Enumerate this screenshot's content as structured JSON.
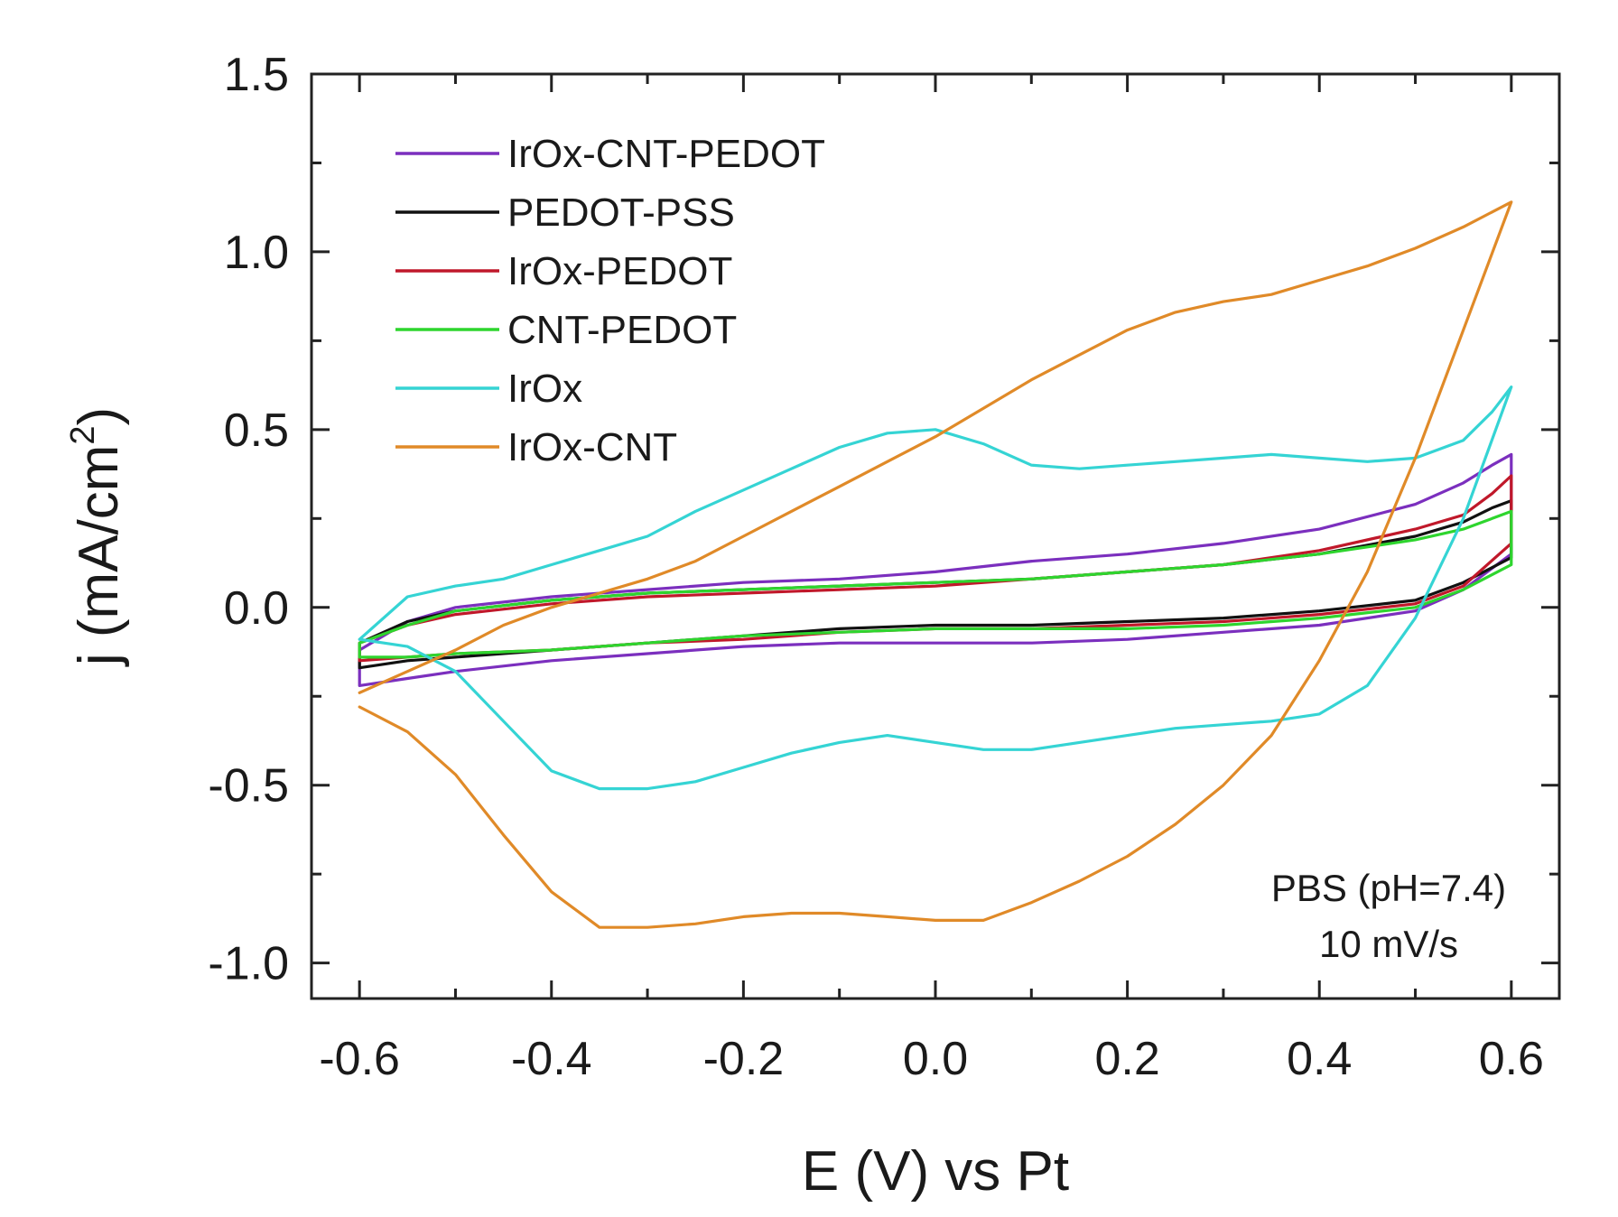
{
  "chart_data": {
    "type": "line",
    "title": "",
    "xlabel": "E (V) vs Pt",
    "ylabel_base": "j (mA/cm",
    "ylabel_sup": "2",
    "ylabel_close": ")",
    "xlim": [
      -0.65,
      0.65
    ],
    "ylim": [
      -1.1,
      1.5
    ],
    "xticks": [
      -0.6,
      -0.4,
      -0.2,
      0.0,
      0.2,
      0.4,
      0.6
    ],
    "xtick_labels": [
      "-0.6",
      "-0.4",
      "-0.2",
      "0.0",
      "0.2",
      "0.4",
      "0.6"
    ],
    "yticks": [
      -1.0,
      -0.5,
      0.0,
      0.5,
      1.0,
      1.5
    ],
    "ytick_labels": [
      "-1.0",
      "-0.5",
      "0.0",
      "0.5",
      "1.0",
      "1.5"
    ],
    "legend_position": "top-left",
    "annotations": [
      "PBS (pH=7.4)",
      "10 mV/s"
    ],
    "series": [
      {
        "name": "IrOx-CNT-PEDOT",
        "color": "#7b2fbe",
        "x": [
          -0.6,
          -0.55,
          -0.5,
          -0.4,
          -0.3,
          -0.2,
          -0.1,
          0.0,
          0.1,
          0.2,
          0.3,
          0.4,
          0.5,
          0.55,
          0.6,
          0.6,
          0.58,
          0.55,
          0.5,
          0.4,
          0.3,
          0.2,
          0.1,
          0.0,
          -0.1,
          -0.2,
          -0.3,
          -0.4,
          -0.5,
          -0.55,
          -0.6,
          -0.6
        ],
        "y": [
          -0.22,
          -0.2,
          -0.18,
          -0.15,
          -0.13,
          -0.11,
          -0.1,
          -0.1,
          -0.1,
          -0.09,
          -0.07,
          -0.05,
          -0.01,
          0.05,
          0.15,
          0.43,
          0.4,
          0.35,
          0.29,
          0.22,
          0.18,
          0.15,
          0.13,
          0.1,
          0.08,
          0.07,
          0.05,
          0.03,
          0.0,
          -0.04,
          -0.12,
          -0.22
        ]
      },
      {
        "name": "PEDOT-PSS",
        "color": "#111111",
        "x": [
          -0.6,
          -0.55,
          -0.5,
          -0.4,
          -0.3,
          -0.2,
          -0.1,
          0.0,
          0.1,
          0.2,
          0.3,
          0.4,
          0.5,
          0.55,
          0.6,
          0.6,
          0.58,
          0.55,
          0.5,
          0.4,
          0.3,
          0.2,
          0.1,
          0.0,
          -0.1,
          -0.2,
          -0.3,
          -0.4,
          -0.5,
          -0.55,
          -0.6,
          -0.6
        ],
        "y": [
          -0.17,
          -0.15,
          -0.14,
          -0.12,
          -0.1,
          -0.08,
          -0.06,
          -0.05,
          -0.05,
          -0.04,
          -0.03,
          -0.01,
          0.02,
          0.07,
          0.14,
          0.3,
          0.28,
          0.24,
          0.2,
          0.15,
          0.12,
          0.1,
          0.08,
          0.07,
          0.06,
          0.05,
          0.04,
          0.02,
          -0.01,
          -0.04,
          -0.1,
          -0.17
        ]
      },
      {
        "name": "IrOx-PEDOT",
        "color": "#c0182a",
        "x": [
          -0.6,
          -0.55,
          -0.5,
          -0.4,
          -0.3,
          -0.2,
          -0.1,
          0.0,
          0.1,
          0.2,
          0.3,
          0.4,
          0.5,
          0.55,
          0.6,
          0.6,
          0.58,
          0.55,
          0.5,
          0.4,
          0.3,
          0.2,
          0.1,
          0.0,
          -0.1,
          -0.2,
          -0.3,
          -0.4,
          -0.5,
          -0.55,
          -0.6,
          -0.6
        ],
        "y": [
          -0.15,
          -0.14,
          -0.13,
          -0.12,
          -0.1,
          -0.09,
          -0.07,
          -0.06,
          -0.06,
          -0.05,
          -0.04,
          -0.02,
          0.01,
          0.06,
          0.18,
          0.37,
          0.32,
          0.26,
          0.22,
          0.16,
          0.12,
          0.1,
          0.08,
          0.06,
          0.05,
          0.04,
          0.03,
          0.01,
          -0.02,
          -0.05,
          -0.1,
          -0.15
        ]
      },
      {
        "name": "CNT-PEDOT",
        "color": "#2ed52e",
        "x": [
          -0.6,
          -0.55,
          -0.5,
          -0.4,
          -0.3,
          -0.2,
          -0.1,
          0.0,
          0.1,
          0.2,
          0.3,
          0.4,
          0.5,
          0.55,
          0.6,
          0.6,
          0.58,
          0.55,
          0.5,
          0.4,
          0.3,
          0.2,
          0.1,
          0.0,
          -0.1,
          -0.2,
          -0.3,
          -0.4,
          -0.5,
          -0.55,
          -0.6,
          -0.6
        ],
        "y": [
          -0.14,
          -0.14,
          -0.13,
          -0.12,
          -0.1,
          -0.08,
          -0.07,
          -0.06,
          -0.06,
          -0.06,
          -0.05,
          -0.03,
          0.0,
          0.05,
          0.12,
          0.27,
          0.25,
          0.22,
          0.19,
          0.15,
          0.12,
          0.1,
          0.08,
          0.07,
          0.06,
          0.05,
          0.04,
          0.02,
          -0.01,
          -0.05,
          -0.1,
          -0.14
        ]
      },
      {
        "name": "IrOx",
        "color": "#35d4d4",
        "x": [
          -0.6,
          -0.55,
          -0.5,
          -0.45,
          -0.4,
          -0.35,
          -0.3,
          -0.25,
          -0.2,
          -0.15,
          -0.1,
          -0.05,
          0.0,
          0.05,
          0.1,
          0.15,
          0.2,
          0.25,
          0.3,
          0.35,
          0.4,
          0.45,
          0.5,
          0.55,
          0.6,
          0.6,
          0.58,
          0.55,
          0.5,
          0.45,
          0.4,
          0.35,
          0.3,
          0.25,
          0.2,
          0.15,
          0.1,
          0.05,
          0.0,
          -0.05,
          -0.1,
          -0.15,
          -0.2,
          -0.25,
          -0.3,
          -0.35,
          -0.4,
          -0.45,
          -0.5,
          -0.55,
          -0.6
        ],
        "y": [
          -0.09,
          -0.11,
          -0.18,
          -0.32,
          -0.46,
          -0.51,
          -0.51,
          -0.49,
          -0.45,
          -0.41,
          -0.38,
          -0.36,
          -0.38,
          -0.4,
          -0.4,
          -0.38,
          -0.36,
          -0.34,
          -0.33,
          -0.32,
          -0.3,
          -0.22,
          -0.03,
          0.25,
          0.62,
          0.62,
          0.55,
          0.47,
          0.42,
          0.41,
          0.42,
          0.43,
          0.42,
          0.41,
          0.4,
          0.39,
          0.4,
          0.46,
          0.5,
          0.49,
          0.45,
          0.39,
          0.33,
          0.27,
          0.2,
          0.16,
          0.12,
          0.08,
          0.06,
          0.03,
          -0.09
        ]
      },
      {
        "name": "IrOx-CNT",
        "color": "#e08a28",
        "x": [
          -0.6,
          -0.55,
          -0.5,
          -0.45,
          -0.4,
          -0.35,
          -0.3,
          -0.25,
          -0.2,
          -0.15,
          -0.1,
          -0.05,
          0.0,
          0.05,
          0.1,
          0.15,
          0.2,
          0.25,
          0.3,
          0.35,
          0.4,
          0.45,
          0.5,
          0.55,
          0.6,
          0.6,
          0.55,
          0.5,
          0.45,
          0.4,
          0.35,
          0.3,
          0.25,
          0.2,
          0.15,
          0.1,
          0.05,
          0.0,
          -0.05,
          -0.1,
          -0.15,
          -0.2,
          -0.25,
          -0.3,
          -0.35,
          -0.4,
          -0.45,
          -0.5,
          -0.55,
          -0.6
        ],
        "y": [
          -0.28,
          -0.35,
          -0.47,
          -0.64,
          -0.8,
          -0.9,
          -0.9,
          -0.89,
          -0.87,
          -0.86,
          -0.86,
          -0.87,
          -0.88,
          -0.88,
          -0.83,
          -0.77,
          -0.7,
          -0.61,
          -0.5,
          -0.36,
          -0.15,
          0.1,
          0.42,
          0.78,
          1.14,
          1.14,
          1.07,
          1.01,
          0.96,
          0.92,
          0.88,
          0.86,
          0.83,
          0.78,
          0.71,
          0.64,
          0.56,
          0.48,
          0.41,
          0.34,
          0.27,
          0.2,
          0.13,
          0.08,
          0.04,
          0.0,
          -0.05,
          -0.12,
          -0.18,
          -0.24
        ]
      }
    ]
  }
}
